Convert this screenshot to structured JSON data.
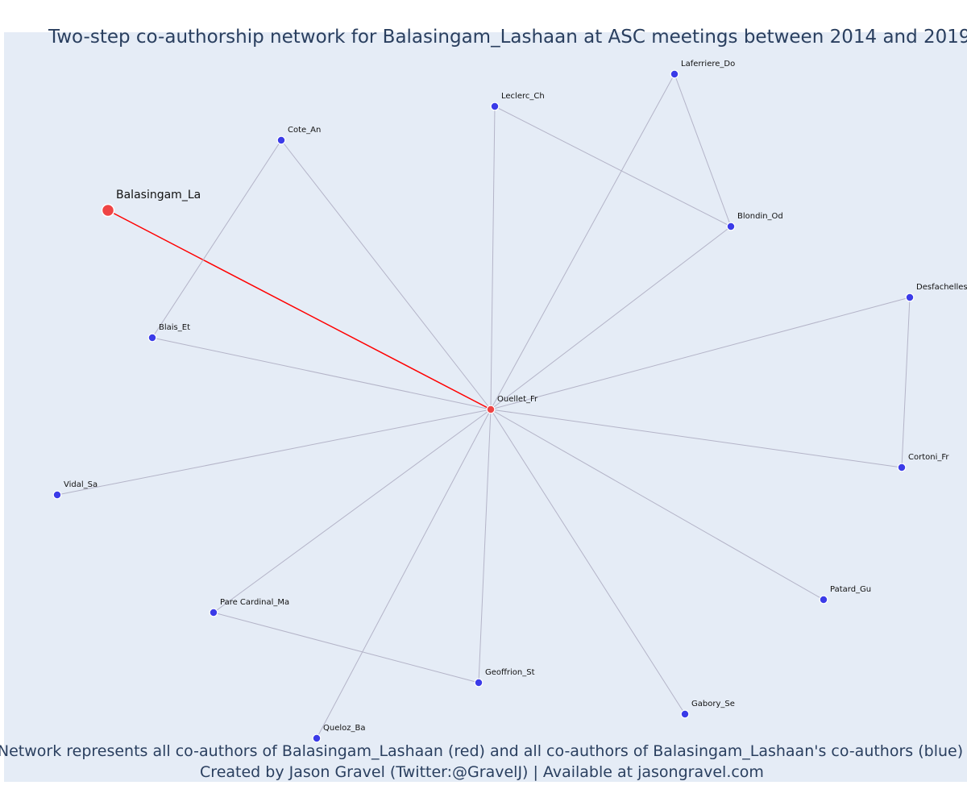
{
  "title": "Two-step co-authorship network for Balasingam_Lashaan at ASC meetings between 2014 and 2019",
  "caption_line1": "Network represents all co-authors of Balasingam_Lashaan (red) and all co-authors of Balasingam_Lashaan's co-authors (blue)",
  "caption_line2": "Created by Jason Gravel (Twitter:@GravelJ) | Available at jasongravel.com",
  "colors": {
    "plot_bg": "#e5ecf6",
    "ego": "#ef4444",
    "first_step": "#ef4444",
    "second_step": "#3b3be8",
    "ego_edge": "#ff0000",
    "edge": "#b4b4c8",
    "text": "#2a3f5f"
  },
  "nodes": [
    {
      "id": "Balasingam_La",
      "label": "Balasingam_La",
      "role": "ego"
    },
    {
      "id": "Ouellet_Fr",
      "label": "Ouellet_Fr",
      "role": "first_step"
    },
    {
      "id": "Cote_An",
      "label": "Cote_An",
      "role": "second_step"
    },
    {
      "id": "Blais_Et",
      "label": "Blais_Et",
      "role": "second_step"
    },
    {
      "id": "Leclerc_Ch",
      "label": "Leclerc_Ch",
      "role": "second_step"
    },
    {
      "id": "Laferriere_Do",
      "label": "Laferriere_Do",
      "role": "second_step"
    },
    {
      "id": "Blondin_Od",
      "label": "Blondin_Od",
      "role": "second_step"
    },
    {
      "id": "Desfachelles",
      "label": "Desfachelles",
      "role": "second_step"
    },
    {
      "id": "Cortoni_Fr",
      "label": "Cortoni_Fr",
      "role": "second_step"
    },
    {
      "id": "Vidal_Sa",
      "label": "Vidal_Sa",
      "role": "second_step"
    },
    {
      "id": "Pare Cardinal_Ma",
      "label": "Pare Cardinal_Ma",
      "role": "second_step"
    },
    {
      "id": "Geoffrion_St",
      "label": "Geoffrion_St",
      "role": "second_step"
    },
    {
      "id": "Queloz_Ba",
      "label": "Queloz_Ba",
      "role": "second_step"
    },
    {
      "id": "Gabory_Se",
      "label": "Gabory_Se",
      "role": "second_step"
    },
    {
      "id": "Patard_Gu",
      "label": "Patard_Gu",
      "role": "second_step"
    }
  ],
  "edges": [
    [
      "Balasingam_La",
      "Ouellet_Fr"
    ],
    [
      "Ouellet_Fr",
      "Cote_An"
    ],
    [
      "Ouellet_Fr",
      "Blais_Et"
    ],
    [
      "Ouellet_Fr",
      "Leclerc_Ch"
    ],
    [
      "Ouellet_Fr",
      "Laferriere_Do"
    ],
    [
      "Ouellet_Fr",
      "Blondin_Od"
    ],
    [
      "Ouellet_Fr",
      "Desfachelles"
    ],
    [
      "Ouellet_Fr",
      "Cortoni_Fr"
    ],
    [
      "Ouellet_Fr",
      "Vidal_Sa"
    ],
    [
      "Ouellet_Fr",
      "Pare Cardinal_Ma"
    ],
    [
      "Ouellet_Fr",
      "Geoffrion_St"
    ],
    [
      "Ouellet_Fr",
      "Queloz_Ba"
    ],
    [
      "Ouellet_Fr",
      "Gabory_Se"
    ],
    [
      "Ouellet_Fr",
      "Patard_Gu"
    ],
    [
      "Cote_An",
      "Blais_Et"
    ],
    [
      "Leclerc_Ch",
      "Blondin_Od"
    ],
    [
      "Laferriere_Do",
      "Blondin_Od"
    ],
    [
      "Desfachelles",
      "Cortoni_Fr"
    ],
    [
      "Pare Cardinal_Ma",
      "Geoffrion_St"
    ]
  ]
}
